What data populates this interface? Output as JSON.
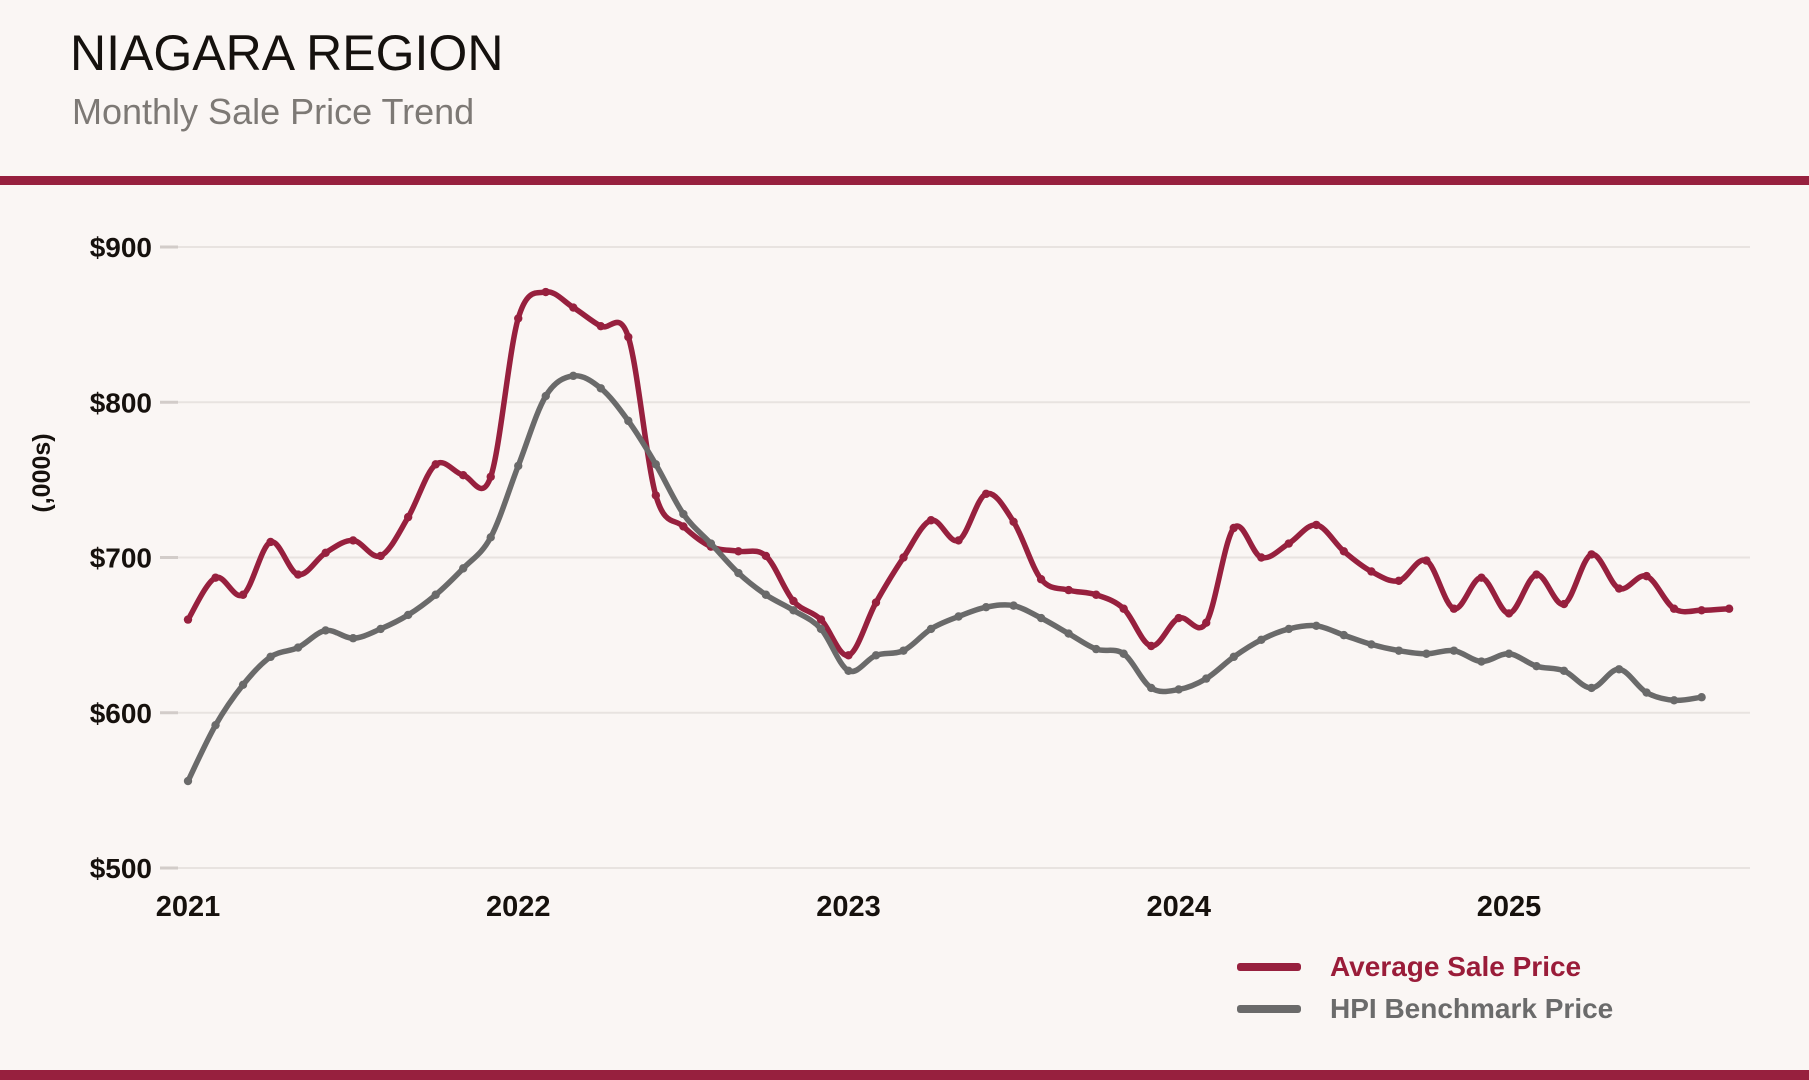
{
  "header": {
    "title": "NIAGARA REGION",
    "subtitle": "Monthly Sale Price Trend"
  },
  "colors": {
    "background": "#FAF6F4",
    "accent_maroon": "#97203E",
    "legend_red_text": "#9A1C39",
    "legend_gray_text": "#6B6B6B",
    "gridline": "#E8E3E0",
    "tick_stub": "#D2CCC9",
    "axis_text": "#16110D",
    "title_text": "#15110E",
    "subtitle_text": "#7D7975"
  },
  "chart_data": {
    "type": "line",
    "title": "Monthly Sale Price Trend",
    "region": "Niagara Region",
    "ylabel": "(,000s)",
    "ylim": [
      500,
      900
    ],
    "grid": "horizontal",
    "frequency": "monthly",
    "start": "2021-01",
    "y_tick_labels": [
      "$900",
      "$800",
      "$700",
      "$600",
      "$500"
    ],
    "y_tick_values": [
      900,
      800,
      700,
      600,
      500
    ],
    "x_tick_labels": [
      "2021",
      "2022",
      "2023",
      "2024",
      "2025"
    ],
    "x_tick_month_index": [
      0,
      12,
      24,
      36,
      48
    ],
    "legend_position": "bottom-right",
    "series": [
      {
        "name": "Average Sale Price",
        "color": "#97203E",
        "values": [
          660,
          687,
          676,
          710,
          689,
          703,
          711,
          701,
          726,
          760,
          753,
          752,
          854,
          871,
          861,
          849,
          842,
          740,
          720,
          707,
          704,
          701,
          672,
          660,
          637,
          671,
          700,
          724,
          711,
          741,
          723,
          686,
          679,
          676,
          667,
          643,
          661,
          658,
          719,
          700,
          709,
          721,
          704,
          691,
          685,
          698,
          667,
          687,
          664,
          689,
          670,
          702,
          680,
          688,
          667,
          666,
          667
        ]
      },
      {
        "name": "HPI Benchmark Price",
        "color": "#6A6A6A",
        "values": [
          556,
          592,
          618,
          636,
          642,
          653,
          648,
          654,
          663,
          676,
          693,
          713,
          759,
          804,
          817,
          809,
          788,
          760,
          728,
          709,
          690,
          676,
          666,
          654,
          627,
          637,
          640,
          654,
          662,
          668,
          669,
          661,
          651,
          641,
          638,
          616,
          615,
          622,
          636,
          647,
          654,
          656,
          650,
          644,
          640,
          638,
          640,
          633,
          638,
          630,
          627,
          616,
          628,
          613,
          608,
          610
        ]
      }
    ]
  }
}
